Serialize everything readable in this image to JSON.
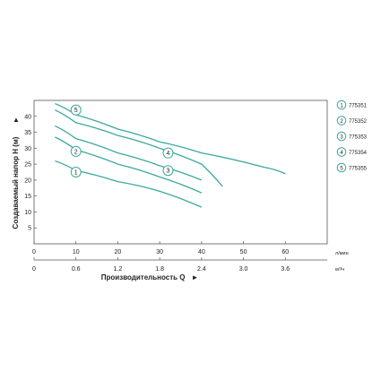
{
  "chart_data": {
    "type": "line",
    "ylabel": "Создаваемый напор H (м)",
    "xlabel": "Производительность Q",
    "x_unit_primary": "л/мин",
    "x_unit_secondary": "м³/ч",
    "xlim": [
      0,
      70
    ],
    "ylim": [
      0,
      45
    ],
    "x_ticks_primary": [
      "0",
      "10",
      "20",
      "30",
      "40",
      "50",
      "60"
    ],
    "x_ticks_primary_values": [
      0,
      10,
      20,
      30,
      40,
      50,
      60
    ],
    "x_ticks_secondary": [
      "0",
      "0.6",
      "1.2",
      "1.8",
      "2.4",
      "3.0",
      "3.6"
    ],
    "x_ticks_secondary_values": [
      0,
      10,
      20,
      30,
      40,
      50,
      60
    ],
    "y_ticks": [
      "5",
      "10",
      "15",
      "20",
      "25",
      "30",
      "35",
      "40"
    ],
    "y_ticks_values": [
      5,
      10,
      15,
      20,
      25,
      30,
      35,
      40
    ],
    "accent_color": "#3aa89e",
    "legend_position": "right",
    "series": [
      {
        "name": "775351",
        "marker": "1",
        "label_x": 10,
        "label_y": 22.5,
        "x": [
          5,
          10,
          20,
          30,
          40
        ],
        "y": [
          26,
          23,
          19.5,
          16.5,
          11.5
        ]
      },
      {
        "name": "775352",
        "marker": "2",
        "label_x": 10,
        "label_y": 29,
        "x": [
          5,
          10,
          20,
          30,
          40
        ],
        "y": [
          33.5,
          29.5,
          25,
          21,
          16
        ]
      },
      {
        "name": "775353",
        "marker": "3",
        "label_x": 32,
        "label_y": 23,
        "x": [
          5,
          10,
          20,
          30,
          40
        ],
        "y": [
          37,
          33,
          28.5,
          24.5,
          20
        ]
      },
      {
        "name": "775354",
        "marker": "4",
        "label_x": 32,
        "label_y": 28.5,
        "x": [
          5,
          10,
          20,
          30,
          40,
          45
        ],
        "y": [
          42,
          38,
          34,
          30,
          25,
          18
        ]
      },
      {
        "name": "775355",
        "marker": "5",
        "label_x": 10,
        "label_y": 42,
        "x": [
          5,
          10,
          20,
          30,
          40,
          55,
          60
        ],
        "y": [
          44,
          40.5,
          36,
          32,
          28.5,
          24,
          22
        ]
      }
    ]
  }
}
